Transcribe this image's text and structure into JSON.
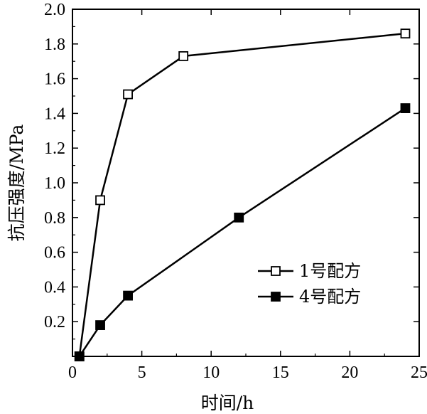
{
  "chart_data": {
    "type": "line",
    "title": "",
    "xlabel": "时间/h",
    "ylabel": "抗压强度/MPa",
    "xlim": [
      0,
      25
    ],
    "ylim": [
      0,
      2.0
    ],
    "x_ticks": [
      "0",
      "5",
      "10",
      "15",
      "20",
      "25"
    ],
    "y_ticks": [
      "0.2",
      "0.4",
      "0.6",
      "0.8",
      "1.0",
      "1.2",
      "1.4",
      "1.6",
      "1.8",
      "2.0"
    ],
    "grid": false,
    "legend_position": "center-right",
    "series": [
      {
        "name": "1号配方",
        "marker": "open-square",
        "color": "#000000",
        "points": [
          [
            0.5,
            0.0
          ],
          [
            2,
            0.9
          ],
          [
            4,
            1.51
          ],
          [
            8,
            1.73
          ],
          [
            24,
            1.86
          ]
        ]
      },
      {
        "name": "4号配方",
        "marker": "filled-square",
        "color": "#000000",
        "points": [
          [
            0.5,
            0.0
          ],
          [
            2,
            0.18
          ],
          [
            4,
            0.35
          ],
          [
            12,
            0.8
          ],
          [
            24,
            1.43
          ]
        ]
      }
    ]
  }
}
